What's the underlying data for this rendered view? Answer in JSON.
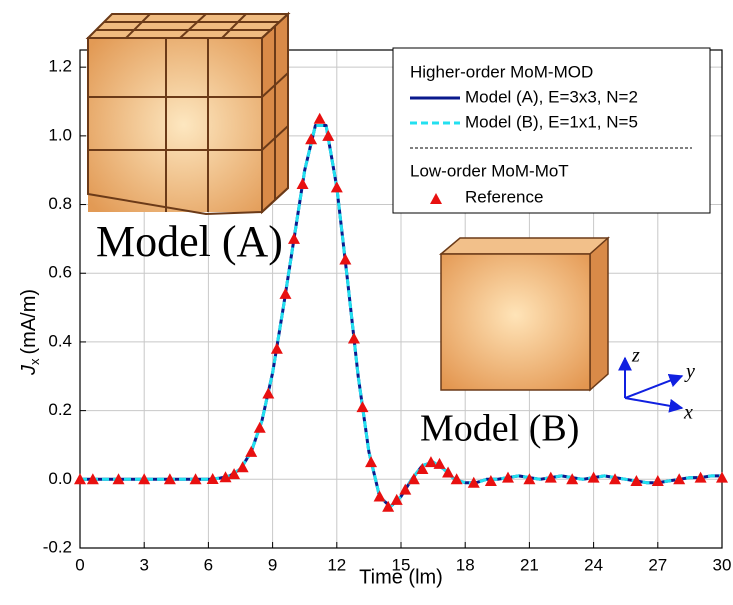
{
  "chart_data": {
    "type": "line",
    "x_label": "Time (lm)",
    "y_label": {
      "symbol": "J",
      "subscript": "x",
      "unit": "(mA/m)"
    },
    "xlim": [
      0,
      30
    ],
    "xticks": [
      0,
      3,
      6,
      9,
      12,
      15,
      18,
      21,
      24,
      27,
      30
    ],
    "ylim": [
      -0.2,
      1.25
    ],
    "yticks": [
      -0.2,
      {
        "value": 0,
        "label": "0.0"
      },
      0.2,
      0.4,
      0.6,
      0.8,
      {
        "value": 1,
        "label": "1.0"
      },
      1.2
    ],
    "grid": true,
    "legend_title": "Higher-order MoM-MOD",
    "legend_subtitle": "Low-order MoM-MoT",
    "legend": "upper right",
    "annotations": [
      "Model (A)",
      "Model (B)"
    ],
    "axes_labels": [
      "z",
      "y",
      "x"
    ],
    "x": [
      0,
      0.5,
      1,
      1.5,
      2,
      2.5,
      3,
      3.5,
      4,
      4.5,
      5,
      5.5,
      6,
      6.5,
      7,
      7.5,
      8,
      8.5,
      9,
      9.5,
      10,
      10.5,
      11,
      11.5,
      12,
      12.5,
      13,
      13.5,
      14,
      14.5,
      15,
      15.5,
      16,
      16.5,
      17,
      17.5,
      18,
      18.5,
      19,
      19.5,
      20,
      20.5,
      21,
      21.5,
      22,
      22.5,
      23,
      23.5,
      24,
      24.5,
      25,
      25.5,
      26,
      26.5,
      27,
      27.5,
      28,
      28.5,
      29,
      29.5,
      30
    ],
    "series": [
      {
        "name": "Model (A), E=3x3, N=2",
        "color": "#0a1a8c",
        "style": "solid",
        "values": [
          0,
          0,
          0,
          0,
          0,
          0,
          0,
          0,
          0,
          0,
          0,
          0,
          0,
          0.003,
          0.01,
          0.03,
          0.08,
          0.17,
          0.31,
          0.5,
          0.7,
          0.9,
          1.03,
          1.03,
          0.85,
          0.58,
          0.3,
          0.08,
          -0.05,
          -0.08,
          -0.05,
          0,
          0.04,
          0.05,
          0.03,
          0,
          -0.01,
          -0.01,
          0,
          0,
          0.005,
          0.01,
          0.005,
          0,
          0.005,
          0.01,
          0.005,
          0,
          0.005,
          0.01,
          0.005,
          0,
          -0.005,
          -0.01,
          -0.01,
          -0.005,
          0,
          0.005,
          0.005,
          0.01,
          0.01
        ]
      },
      {
        "name": "Model (B), E=1x1, N=5",
        "color": "#22e0f0",
        "style": "dashed",
        "values": [
          0,
          0,
          0,
          0,
          0,
          0,
          0,
          0,
          0,
          0,
          0,
          0,
          0,
          0.003,
          0.01,
          0.03,
          0.08,
          0.17,
          0.31,
          0.5,
          0.7,
          0.9,
          1.03,
          1.03,
          0.85,
          0.58,
          0.3,
          0.08,
          -0.05,
          -0.08,
          -0.05,
          0,
          0.04,
          0.05,
          0.03,
          0,
          -0.01,
          -0.01,
          0,
          0,
          0.005,
          0.01,
          0.005,
          0,
          0.005,
          0.01,
          0.005,
          0,
          0.005,
          0.01,
          0.005,
          0,
          -0.005,
          -0.01,
          -0.01,
          -0.005,
          0,
          0.005,
          0.005,
          0.01,
          0.01
        ]
      },
      {
        "name": "Reference",
        "color": "#e81010",
        "style": "triangle",
        "x": [
          0,
          0.6,
          1.8,
          3,
          4.2,
          5.4,
          6.2,
          6.8,
          7.2,
          7.6,
          8,
          8.4,
          8.8,
          9.2,
          9.6,
          10,
          10.4,
          10.8,
          11.2,
          11.6,
          12,
          12.4,
          12.8,
          13.2,
          13.6,
          14,
          14.4,
          14.8,
          15.2,
          15.6,
          16,
          16.4,
          16.8,
          17.2,
          17.6,
          18.4,
          19.2,
          20,
          21,
          22,
          23,
          24,
          25,
          26,
          27,
          28,
          29,
          30
        ],
        "values": [
          0,
          0,
          0,
          0,
          0,
          0,
          0.001,
          0.006,
          0.015,
          0.035,
          0.08,
          0.15,
          0.25,
          0.38,
          0.54,
          0.7,
          0.86,
          0.99,
          1.05,
          1,
          0.85,
          0.64,
          0.41,
          0.21,
          0.05,
          -0.05,
          -0.08,
          -0.06,
          -0.03,
          0,
          0.03,
          0.05,
          0.045,
          0.02,
          0,
          -0.01,
          -0.005,
          0.005,
          0,
          0.005,
          0,
          0.005,
          0,
          -0.005,
          -0.005,
          0,
          0.005,
          0.005
        ]
      }
    ]
  }
}
